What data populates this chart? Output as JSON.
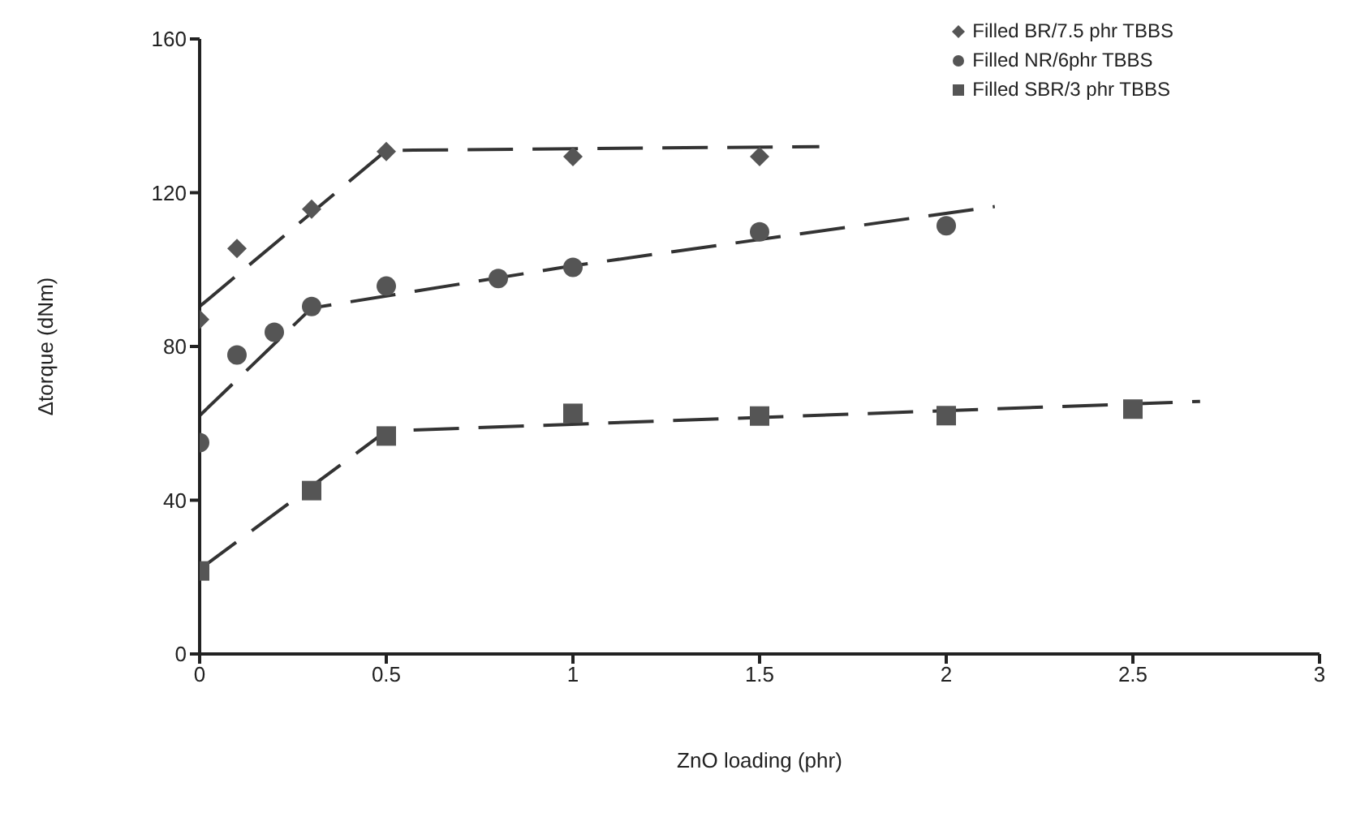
{
  "chart_data": {
    "type": "scatter",
    "xlabel": "ZnO loading (phr)",
    "ylabel": "Δtorque (dNm)",
    "xlim": [
      0,
      3
    ],
    "xticks": [
      0,
      0.5,
      1,
      1.5,
      2,
      2.5,
      3
    ],
    "ylim": [
      0,
      160
    ],
    "yticks": [
      0,
      40,
      80,
      120,
      160
    ],
    "grid": false,
    "legend": "top right",
    "series": [
      {
        "name": "Filled BR/7.5 phr TBBS",
        "marker": "diamond",
        "color": "#555555",
        "x": [
          0,
          0.1,
          0.3,
          0.5,
          1,
          1.5
        ],
        "values": [
          87,
          105.5,
          115.7,
          130.7,
          129.4,
          129.4
        ]
      },
      {
        "name": "Filled NR/6phr TBBS",
        "marker": "circle",
        "color": "#555555",
        "x": [
          0,
          0.1,
          0.2,
          0.3,
          0.5,
          0.8,
          1,
          1.5,
          2
        ],
        "values": [
          55,
          77.8,
          83.7,
          90.4,
          95.7,
          97.7,
          100.6,
          109.8,
          111.4
        ]
      },
      {
        "name": "Filled SBR/3 phr TBBS",
        "marker": "square",
        "color": "#555555",
        "x": [
          0,
          0.3,
          0.5,
          1,
          1.5,
          2,
          2.5
        ],
        "values": [
          21.6,
          42.5,
          56.7,
          62.6,
          61.9,
          62,
          63.7
        ]
      },
      {
        "type": "line",
        "marker": "none",
        "line_style": "dashed",
        "color": "#333333",
        "x": [
          0,
          0.5,
          1.66
        ],
        "values": [
          90.4,
          131,
          132
        ]
      },
      {
        "type": "line",
        "marker": "none",
        "line_style": "dashed",
        "color": "#333333",
        "x": [
          0,
          0.3,
          1,
          2.13
        ],
        "values": [
          62,
          90,
          101,
          116.4
        ]
      },
      {
        "type": "line",
        "marker": "none",
        "line_style": "dashed",
        "color": "#333333",
        "x": [
          0,
          0.5,
          2.68
        ],
        "values": [
          22,
          58,
          65.7
        ]
      }
    ]
  }
}
